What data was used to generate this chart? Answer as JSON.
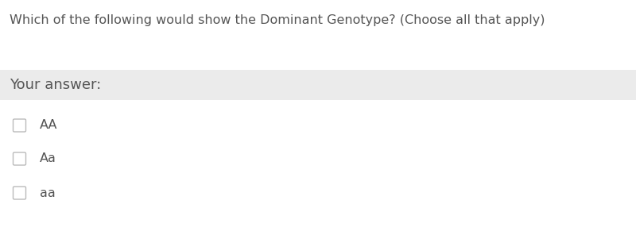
{
  "question": "Which of the following would show the Dominant Genotype? (Choose all that apply)",
  "answer_label": "Your answer:",
  "options": [
    "AA",
    "Aa",
    "aa"
  ],
  "bg_color": "#ffffff",
  "answer_bg_color": "#ebebeb",
  "text_color": "#555555",
  "question_fontsize": 11.5,
  "answer_fontsize": 13,
  "option_fontsize": 11.5,
  "checkbox_color": "#bbbbbb",
  "fig_width": 8.0,
  "fig_height": 2.96,
  "dpi": 100
}
